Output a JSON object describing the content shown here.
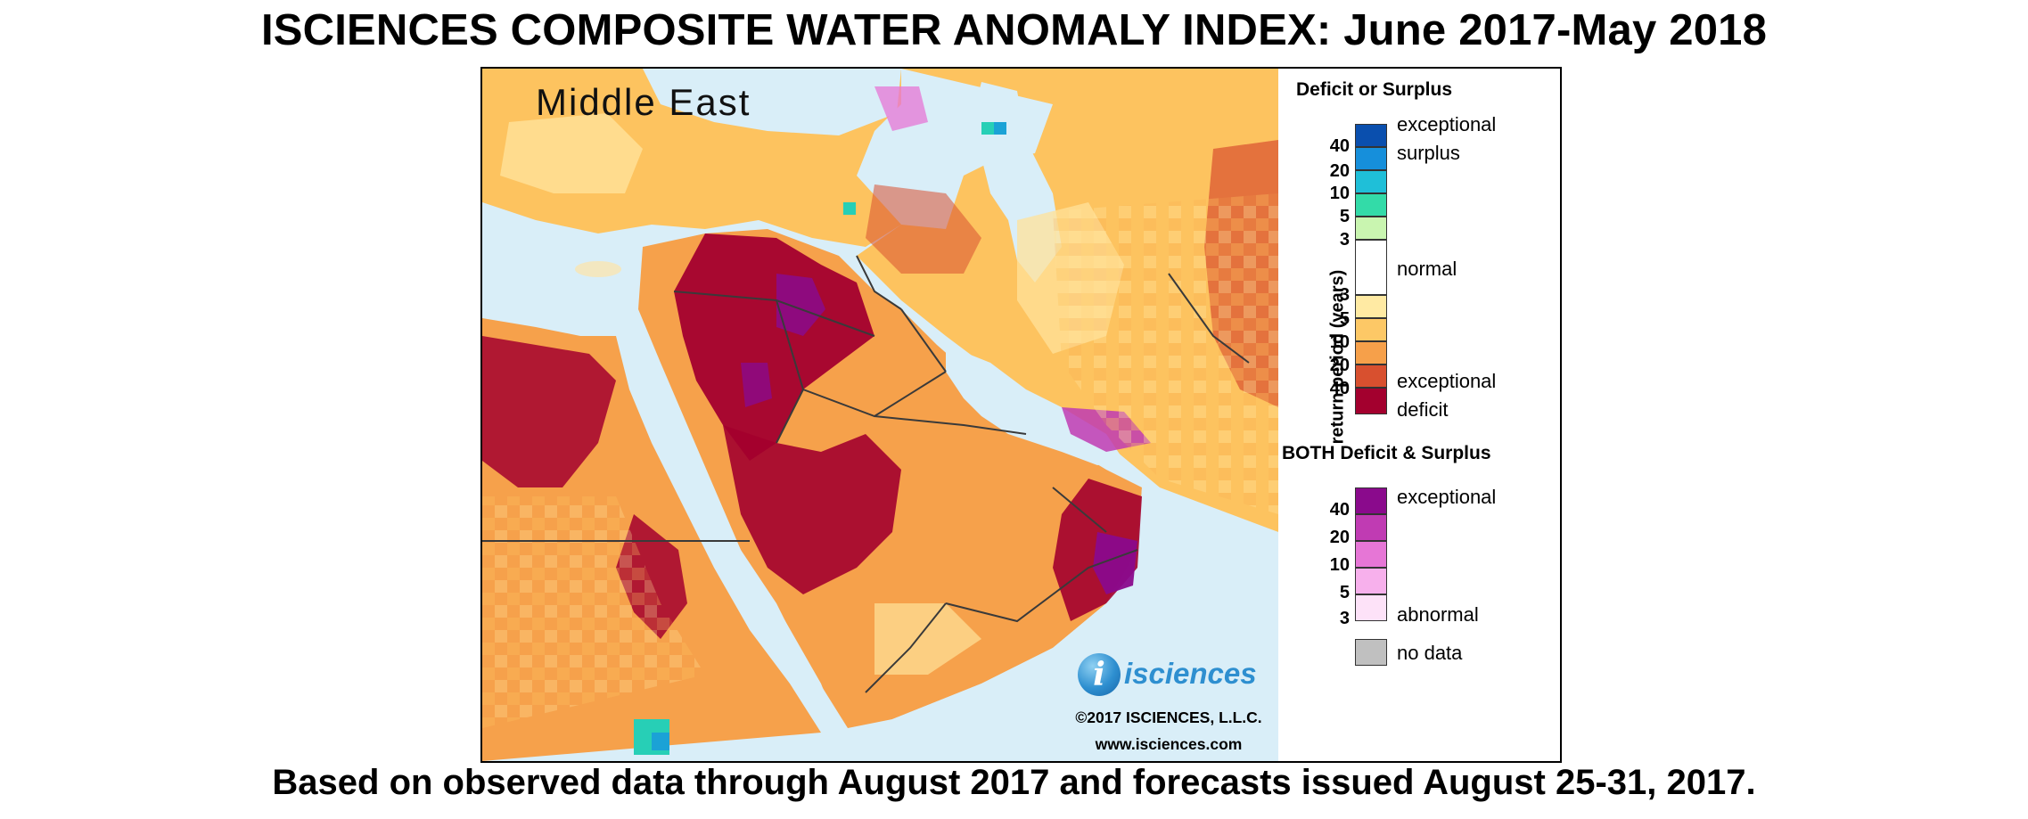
{
  "title": "ISCIENCES COMPOSITE WATER ANOMALY INDEX: June 2017-May 2018",
  "footer": "Based on observed data through August 2017 and forecasts issued August 25-31, 2017.",
  "map": {
    "region_label": "Middle East",
    "brand_name": "isciences",
    "copyright": "©2017 ISCIENCES, L.L.C.",
    "website": "www.isciences.com",
    "colors": {
      "water": "#d9eef8",
      "normal": "#fff2c6",
      "deficit_abnormal": "#ffe29a",
      "deficit_moderate": "#fdc35f",
      "deficit_severe": "#f6a14b",
      "deficit_extreme": "#d8502f",
      "deficit_exceptional": "#a3002e",
      "both_exceptional": "#8a0a8c",
      "both_extreme": "#c03bb3",
      "both_moderate": "#e676d6",
      "surplus_moderate": "#27cfb6",
      "surplus_severe": "#1ba2d6",
      "borders": "#3a3a3a"
    }
  },
  "legend": {
    "deficit_surplus_heading": "Deficit or Surplus",
    "both_heading": "BOTH Deficit & Surplus",
    "axis_title": "return period (years)",
    "labels": {
      "exceptional_surplus_1": "exceptional",
      "exceptional_surplus_2": "surplus",
      "normal": "normal",
      "exceptional_deficit_1": "exceptional",
      "exceptional_deficit_2": "deficit",
      "both_exceptional": "exceptional",
      "both_abnormal": "abnormal",
      "no_data": "no data"
    },
    "surplus_ticks": [
      "40",
      "20",
      "10",
      "5",
      "3"
    ],
    "deficit_ticks": [
      "3",
      "5",
      "10",
      "20",
      "40"
    ],
    "both_ticks": [
      "40",
      "20",
      "10",
      "5",
      "3"
    ],
    "surplus_colors": [
      "#0a4fae",
      "#168fdb",
      "#1fbfd8",
      "#33dba8",
      "#c9f5b0"
    ],
    "normal_color": "#ffffff",
    "deficit_colors": [
      "#ffeaa3",
      "#fdc866",
      "#f6a04a",
      "#d8502f",
      "#a3002e"
    ],
    "both_colors": [
      "#8a0a8c",
      "#c03bb3",
      "#e676d6",
      "#f7b0ec",
      "#fde2f8"
    ],
    "no_data_color": "#c0c0c0"
  }
}
